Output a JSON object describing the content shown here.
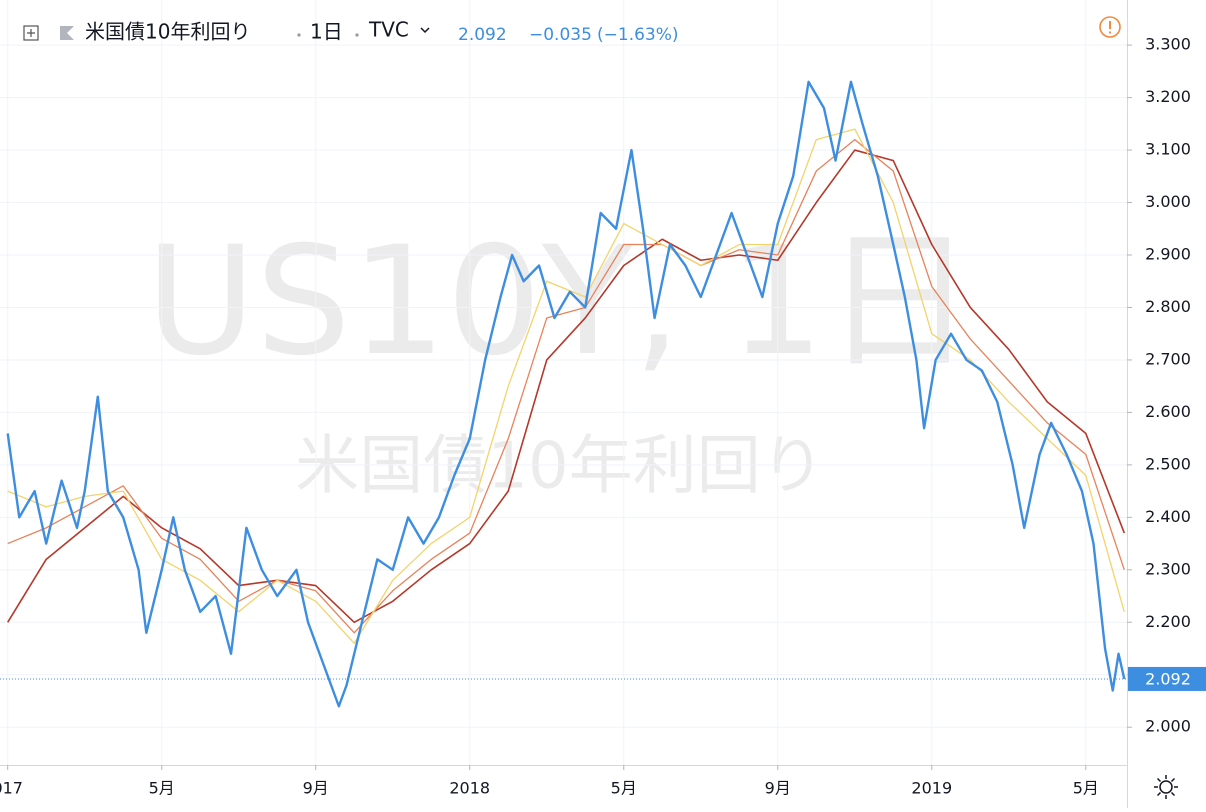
{
  "chart_data": {
    "type": "line",
    "title": "米国債10年利回り",
    "interval": "1日",
    "source": "TVC",
    "watermark": "US10Y, 1日",
    "last_value": 2.092,
    "change": "−0.035",
    "change_pct": "(−1.63%)",
    "grid": true,
    "xlim": [
      -0.2,
      29.07
    ],
    "xticks": [
      {
        "value": 0,
        "label": "017"
      },
      {
        "value": 4,
        "label": "5月"
      },
      {
        "value": 8,
        "label": "9月"
      },
      {
        "value": 12,
        "label": "2018"
      },
      {
        "value": 16,
        "label": "5月"
      },
      {
        "value": 20,
        "label": "9月"
      },
      {
        "value": 24,
        "label": "2019"
      },
      {
        "value": 28,
        "label": "5月"
      }
    ],
    "ylim": [
      1.928,
      3.386
    ],
    "yticks": [
      {
        "value": 2.0,
        "label": "2.000"
      },
      {
        "value": 2.1,
        "label": "2.100"
      },
      {
        "value": 2.2,
        "label": "2.200"
      },
      {
        "value": 2.3,
        "label": "2.300"
      },
      {
        "value": 2.4,
        "label": "2.400"
      },
      {
        "value": 2.5,
        "label": "2.500"
      },
      {
        "value": 2.6,
        "label": "2.600"
      },
      {
        "value": 2.7,
        "label": "2.700"
      },
      {
        "value": 2.8,
        "label": "2.800"
      },
      {
        "value": 2.9,
        "label": "2.900"
      },
      {
        "value": 3.0,
        "label": "3.000"
      },
      {
        "value": 3.1,
        "label": "3.100"
      },
      {
        "value": 3.2,
        "label": "3.200"
      },
      {
        "value": 3.3,
        "label": "3.300"
      }
    ],
    "series": [
      {
        "color": "#b5382a",
        "width": 1.6,
        "x": [
          0,
          1,
          2,
          3,
          4,
          5,
          6,
          7,
          8,
          9,
          10,
          11,
          12,
          13,
          14,
          15,
          16,
          17,
          18,
          19,
          20,
          21,
          22,
          23,
          24,
          25,
          26,
          27,
          28,
          29
        ],
        "values": [
          2.2,
          2.32,
          2.38,
          2.44,
          2.38,
          2.34,
          2.27,
          2.28,
          2.27,
          2.2,
          2.24,
          2.3,
          2.35,
          2.45,
          2.7,
          2.78,
          2.88,
          2.93,
          2.89,
          2.9,
          2.89,
          3.0,
          3.1,
          3.08,
          2.92,
          2.8,
          2.72,
          2.62,
          2.56,
          2.37
        ]
      },
      {
        "color": "#e8825a",
        "width": 1.3,
        "x": [
          0,
          1,
          2,
          3,
          4,
          5,
          6,
          7,
          8,
          9,
          10,
          11,
          12,
          13,
          14,
          15,
          16,
          17,
          18,
          19,
          20,
          21,
          22,
          23,
          24,
          25,
          26,
          27,
          28,
          29
        ],
        "values": [
          2.35,
          2.38,
          2.42,
          2.46,
          2.36,
          2.32,
          2.24,
          2.28,
          2.26,
          2.18,
          2.26,
          2.32,
          2.37,
          2.55,
          2.78,
          2.8,
          2.92,
          2.92,
          2.88,
          2.91,
          2.9,
          3.06,
          3.12,
          3.06,
          2.84,
          2.74,
          2.66,
          2.58,
          2.52,
          2.3
        ]
      },
      {
        "color": "#f3d36b",
        "width": 1.3,
        "x": [
          0,
          1,
          2,
          3,
          4,
          5,
          6,
          7,
          8,
          9,
          10,
          11,
          12,
          13,
          14,
          15,
          16,
          17,
          18,
          19,
          20,
          21,
          22,
          23,
          24,
          25,
          26,
          27,
          28,
          29
        ],
        "values": [
          2.45,
          2.42,
          2.44,
          2.45,
          2.32,
          2.28,
          2.22,
          2.28,
          2.24,
          2.16,
          2.28,
          2.35,
          2.4,
          2.65,
          2.85,
          2.82,
          2.96,
          2.92,
          2.88,
          2.92,
          2.92,
          3.12,
          3.14,
          3.0,
          2.75,
          2.7,
          2.62,
          2.55,
          2.48,
          2.22
        ]
      },
      {
        "color": "#3d8ee0",
        "width": 2.4,
        "x": [
          0,
          0.3,
          0.7,
          1.0,
          1.4,
          1.8,
          2.0,
          2.34,
          2.6,
          3.0,
          3.4,
          3.6,
          4.0,
          4.3,
          4.6,
          5.0,
          5.4,
          5.8,
          6.2,
          6.6,
          7.0,
          7.5,
          7.8,
          8.2,
          8.6,
          8.8,
          9.2,
          9.6,
          10.0,
          10.4,
          10.8,
          11.2,
          11.6,
          12.0,
          12.4,
          12.8,
          13.1,
          13.4,
          13.8,
          14.2,
          14.6,
          15.0,
          15.4,
          15.8,
          16.2,
          16.5,
          16.8,
          17.2,
          17.6,
          18.0,
          18.4,
          18.8,
          19.2,
          19.6,
          20.0,
          20.4,
          20.8,
          21.2,
          21.5,
          21.9,
          22.2,
          22.6,
          23.0,
          23.3,
          23.6,
          23.8,
          24.1,
          24.5,
          24.9,
          25.3,
          25.7,
          26.1,
          26.4,
          26.8,
          27.1,
          27.5,
          27.9,
          28.2,
          28.5,
          28.7,
          28.85,
          29.0
        ],
        "values": [
          2.56,
          2.4,
          2.45,
          2.35,
          2.47,
          2.38,
          2.45,
          2.63,
          2.45,
          2.4,
          2.3,
          2.18,
          2.3,
          2.4,
          2.3,
          2.22,
          2.25,
          2.14,
          2.38,
          2.3,
          2.25,
          2.3,
          2.2,
          2.12,
          2.04,
          2.08,
          2.2,
          2.32,
          2.3,
          2.4,
          2.35,
          2.4,
          2.48,
          2.55,
          2.7,
          2.82,
          2.9,
          2.85,
          2.88,
          2.78,
          2.83,
          2.8,
          2.98,
          2.95,
          3.1,
          2.95,
          2.78,
          2.92,
          2.88,
          2.82,
          2.9,
          2.98,
          2.9,
          2.82,
          2.96,
          3.05,
          3.23,
          3.18,
          3.08,
          3.23,
          3.15,
          3.05,
          2.92,
          2.82,
          2.7,
          2.57,
          2.7,
          2.75,
          2.7,
          2.68,
          2.62,
          2.5,
          2.38,
          2.52,
          2.58,
          2.52,
          2.45,
          2.35,
          2.15,
          2.07,
          2.14,
          2.092
        ]
      }
    ]
  }
}
